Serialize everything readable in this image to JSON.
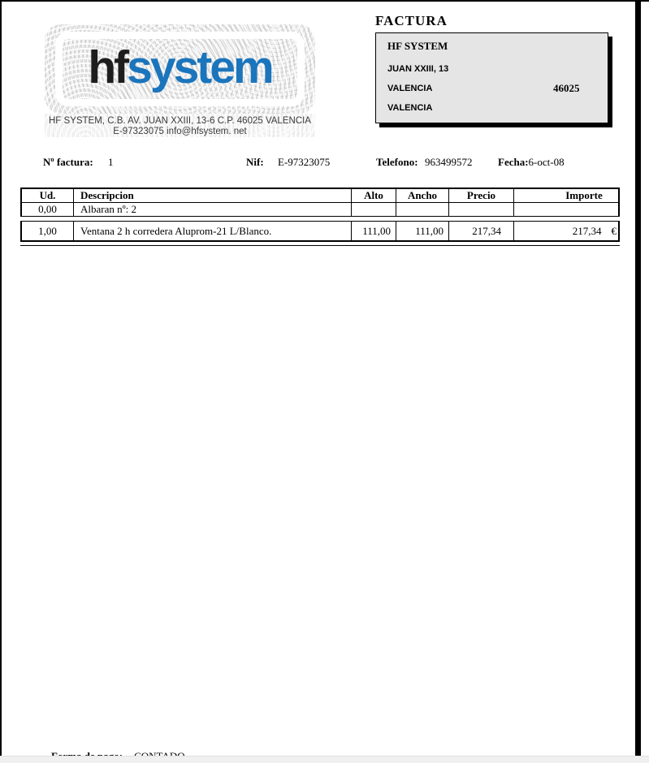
{
  "page": {
    "title": "FACTURA"
  },
  "logo": {
    "brand_black": "hf",
    "brand_blue": "system",
    "brand_blue_color": "#1b75bc",
    "address_line1": "HF SYSTEM, C.B. AV. JUAN XXIII, 13-6 C.P. 46025 VALENCIA",
    "address_line2": "E-97323075 info@hfsystem. net"
  },
  "customer_box": {
    "name": "HF SYSTEM",
    "address": "JUAN XXIII, 13",
    "city": "VALENCIA",
    "postal_code": "46025",
    "province": "VALENCIA"
  },
  "details": {
    "numero_label": "Nº factura:",
    "numero_value": "1",
    "nif_label": "Nif:",
    "nif_value": "E-97323075",
    "telefono_label": "Telefono:",
    "telefono_value": "963499572",
    "fecha_label": "Fecha:",
    "fecha_value": "6-oct-08"
  },
  "invoice_table": {
    "headers": [
      "Ud.",
      "Descripcion",
      "Alto",
      "Ancho",
      "Precio",
      "Importe"
    ],
    "rows": [
      {
        "ud": "0,00",
        "descripcion": "Albaran nº: 2",
        "alto": "",
        "ancho": "",
        "precio": "",
        "importe": "",
        "currency": ""
      },
      {
        "ud": "1,00",
        "descripcion": "Ventana 2 h corredera Aluprom-21 L/Blanco.",
        "alto": "111,00",
        "ancho": "111,00",
        "precio": "217,34",
        "importe": "217,34",
        "currency": "€"
      }
    ]
  },
  "footer": {
    "payment_label": "Forma de pago:",
    "payment_value": "CONTADO"
  }
}
